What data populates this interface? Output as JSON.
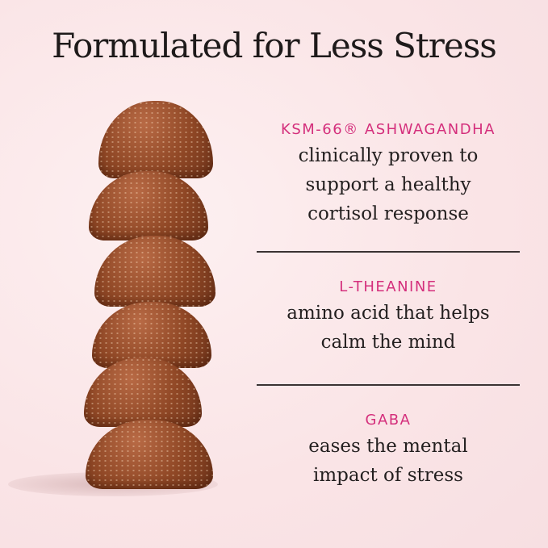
{
  "title": "Formulated for Less Stress",
  "colors": {
    "background": "#fae4e6",
    "accent": "#d42f7c",
    "text": "#231f1f",
    "gummy": "#8f4725"
  },
  "ingredients": [
    {
      "name": "KSM-66® ASHWAGANDHA",
      "lines": [
        "clinically proven to",
        "support a healthy",
        "cortisol response"
      ]
    },
    {
      "name": "L-THEANINE",
      "lines": [
        "amino acid that helps",
        "calm the mind"
      ]
    },
    {
      "name": "GABA",
      "lines": [
        "eases the mental",
        "impact of stress"
      ]
    }
  ]
}
